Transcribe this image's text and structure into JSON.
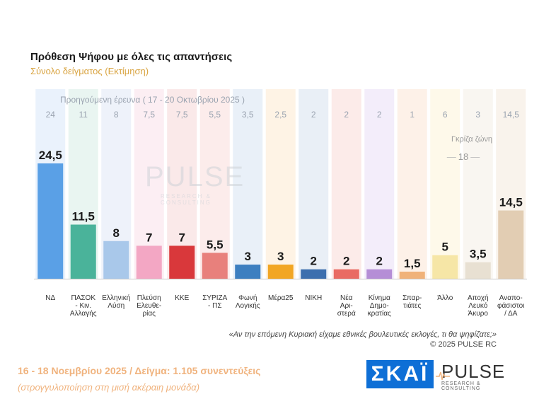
{
  "header": {
    "title": "Πρόθεση Ψήφου με όλες τις απαντήσεις",
    "subtitle": "Σύνολο δείγματος   (Εκτίμηση)"
  },
  "previous_survey_label": "Προηγούμενη έρευνα ( 17 - 20 Οκτωβρίου 2025 )",
  "grey_zone": {
    "label": "Γκρίζα ζώνη",
    "value": "18"
  },
  "watermark": {
    "text": "PULSE",
    "sub": "RESEARCH & CONSULTING"
  },
  "question": "«Αν την επόμενη Κυριακή είχαμε εθνικές βουλευτικές εκλογές, τι θα ψηφίζατε;»",
  "copyright": "©  2025  PULSE RC",
  "footer": {
    "dates": "16 - 18 Νοεμβρίου 2025  /  Δείγμα:  1.105 συνεντεύξεις",
    "note": "(στρογγυλοποίηση στη μισή ακέραιη μονάδα)"
  },
  "logos": {
    "skai": "ΣΚΑΪ",
    "pulse": "PULSE",
    "pulse_sub": "RESEARCH & CONSULTING"
  },
  "chart_data": {
    "type": "bar",
    "categories": [
      [
        "ΝΔ"
      ],
      [
        "ΠΑΣΟΚ",
        "- Κιν.",
        "Αλλαγής"
      ],
      [
        "Ελληνική",
        "Λύση"
      ],
      [
        "Πλεύση",
        "Ελευθε-",
        "ρίας"
      ],
      [
        "ΚΚΕ"
      ],
      [
        "ΣΥΡΙΖΑ",
        "- ΠΣ"
      ],
      [
        "Φωνή",
        "Λογικής"
      ],
      [
        "Μέρα25"
      ],
      [
        "ΝΙΚΗ"
      ],
      [
        "Νέα",
        "Αρι-",
        "στερά"
      ],
      [
        "Κίνημα",
        "Δημο-",
        "κρατίας"
      ],
      [
        "Σπαρ-",
        "τιάτες"
      ],
      [
        "Άλλο"
      ],
      [
        "Αποχή",
        "Λευκό",
        "Άκυρο"
      ],
      [
        "Αναπο-",
        "φάσιστοι",
        "/ ΔΑ"
      ]
    ],
    "series": [
      {
        "values": [
          24.5,
          11.5,
          8,
          7,
          7,
          5.5,
          3,
          3,
          2,
          2,
          2,
          1.5,
          5,
          3.5,
          14.5
        ]
      }
    ],
    "value_labels": [
      "24,5",
      "11,5",
      "8",
      "7",
      "7",
      "5,5",
      "3",
      "3",
      "2",
      "2",
      "2",
      "1,5",
      "5",
      "3,5",
      "14,5"
    ],
    "previous_values": [
      "24",
      "11",
      "8",
      "7,5",
      "7,5",
      "5,5",
      "3,5",
      "2,5",
      "2",
      "2",
      "2",
      "1",
      "6",
      "3",
      "14,5"
    ],
    "colors": [
      "#5aa0e6",
      "#4ab39a",
      "#a9c8ea",
      "#f3a7c4",
      "#d9383b",
      "#e8807c",
      "#3d7fc0",
      "#f2a623",
      "#3d6fae",
      "#e96b63",
      "#b58ed6",
      "#f0b27a",
      "#f6e6a6",
      "#e8e0d2",
      "#e2cdb3"
    ],
    "column_tints": [
      "#e3eefb",
      "#e2f1ec",
      "#e8eef8",
      "#fbe8ef",
      "#f8e1e1",
      "#fbe5e4",
      "#e2ebf6",
      "#fdefdc",
      "#e2e9f3",
      "#fbe4e2",
      "#efe7f8",
      "#fcece0",
      "#fdf7e3",
      "#f7f3ec",
      "#f7efe6"
    ],
    "ylim": [
      0,
      26
    ],
    "grid": false,
    "legend": "none"
  }
}
